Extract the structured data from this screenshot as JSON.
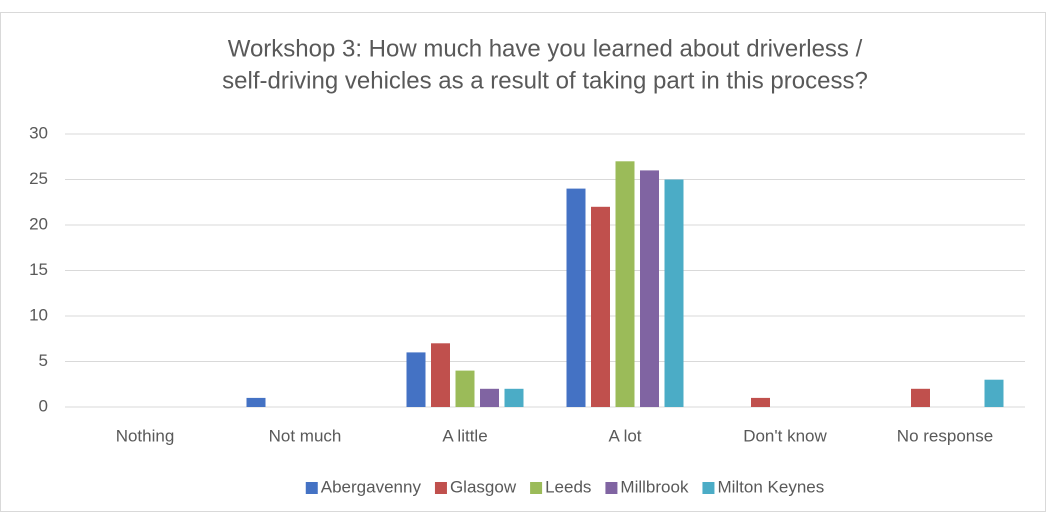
{
  "chart_data": {
    "type": "bar",
    "title": [
      "Workshop 3: How much have you learned about driverless /",
      "self-driving vehicles as a result of taking part in this process?"
    ],
    "categories": [
      "Nothing",
      "Not much",
      "A little",
      "A lot",
      "Don't know",
      "No response"
    ],
    "series": [
      {
        "name": "Abergavenny",
        "color": "#4472c4",
        "values": [
          0,
          1,
          6,
          24,
          0,
          0
        ]
      },
      {
        "name": "Glasgow",
        "color": "#c0504d",
        "values": [
          0,
          0,
          7,
          22,
          1,
          2
        ]
      },
      {
        "name": "Leeds",
        "color": "#9bbb59",
        "values": [
          0,
          0,
          4,
          27,
          0,
          0
        ]
      },
      {
        "name": "Millbrook",
        "color": "#8064a2",
        "values": [
          0,
          0,
          2,
          26,
          0,
          0
        ]
      },
      {
        "name": "Milton Keynes",
        "color": "#4bacc6",
        "values": [
          0,
          0,
          2,
          25,
          0,
          3
        ]
      }
    ],
    "ylim": [
      0,
      30
    ],
    "yticks": [
      0,
      5,
      10,
      15,
      20,
      25,
      30
    ],
    "grid": true,
    "legend": "bottom"
  }
}
